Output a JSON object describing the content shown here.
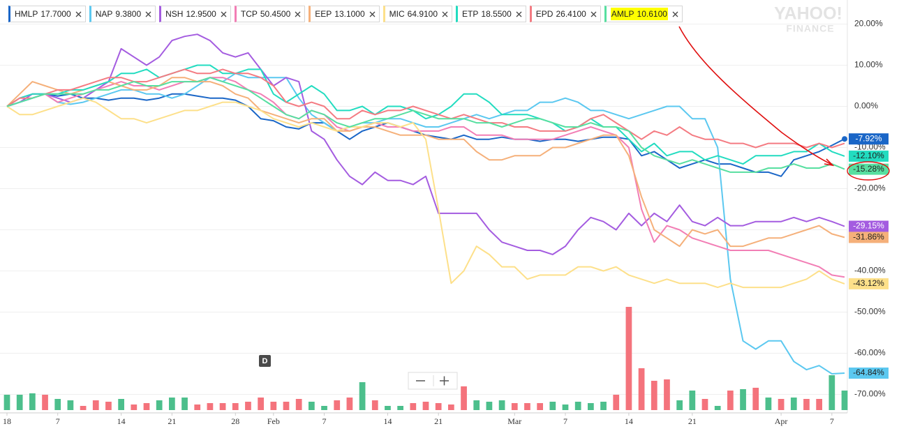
{
  "chart_data": {
    "type": "line",
    "watermark": {
      "brand": "YAHOO!",
      "product": "FINANCE"
    },
    "event_marker": "D",
    "categories": [
      "18",
      null,
      null,
      null,
      "7",
      null,
      null,
      null,
      null,
      "14",
      null,
      null,
      null,
      "21",
      null,
      null,
      null,
      null,
      "28",
      null,
      null,
      "Feb",
      null,
      null,
      null,
      "7",
      null,
      null,
      null,
      null,
      "14",
      null,
      null,
      null,
      "21",
      null,
      null,
      null,
      null,
      null,
      "Mar",
      null,
      null,
      null,
      "7",
      null,
      null,
      null,
      null,
      "14",
      null,
      null,
      null,
      null,
      "21",
      null,
      null,
      null,
      null,
      null,
      null,
      "Apr",
      null,
      null,
      null,
      "7",
      null
    ],
    "ylim": [
      -74.5,
      25
    ],
    "yticks": [
      {
        "value": 20,
        "label": "20.00%"
      },
      {
        "value": 10,
        "label": "10.00%"
      },
      {
        "value": 0,
        "label": "0.00%"
      },
      {
        "value": -10,
        "label": "-10.00%"
      },
      {
        "value": -20,
        "label": "-20.00%"
      },
      {
        "value": -30,
        "label": "-30.00%"
      },
      {
        "value": -40,
        "label": "-40.00%"
      },
      {
        "value": -50,
        "label": "-50.00%"
      },
      {
        "value": -60,
        "label": "-60.00%"
      },
      {
        "value": -70,
        "label": "-70.00%"
      }
    ],
    "grid": true,
    "series": [
      {
        "name": "HMLP",
        "price": "17.7000",
        "color": "#1a66c7",
        "end_label": "-7.92%",
        "end_dot": true,
        "values": [
          0,
          1,
          2,
          3,
          2.5,
          3,
          2,
          2,
          1.5,
          2,
          2,
          1.5,
          2,
          3,
          3,
          2.5,
          2,
          2,
          1.5,
          0,
          -3,
          -3.5,
          -5,
          -5.5,
          -4,
          -4,
          -6,
          -8,
          -6,
          -5,
          -4,
          -5,
          -6,
          -7,
          -7.5,
          -8,
          -7,
          -8,
          -8,
          -7.5,
          -8,
          -8,
          -8.5,
          -8,
          -8,
          -8.5,
          -8,
          -7.5,
          -7.5,
          -8,
          -12,
          -11,
          -13,
          -15,
          -14,
          -13,
          -14,
          -14,
          -15,
          -16,
          -16,
          -17,
          -13,
          -12,
          -11,
          -9.5,
          -7.92
        ]
      },
      {
        "name": "NAP",
        "price": "9.3800",
        "color": "#5bc8f0",
        "end_label": "-64.84%",
        "values": [
          0,
          1,
          2,
          3,
          1,
          0.5,
          1,
          2,
          3,
          4,
          4,
          3,
          3,
          2,
          3,
          5,
          7,
          6,
          8,
          7,
          7,
          7,
          7,
          2,
          -2,
          -4,
          -6,
          -5,
          -4,
          -4,
          -3,
          -3,
          -4,
          -5,
          -5,
          -4,
          -3,
          -2,
          -3,
          -2,
          -1,
          -1,
          1,
          1,
          2,
          1,
          -1,
          -1,
          -2,
          -3,
          -2,
          -1,
          0,
          0,
          -3,
          -3,
          -10,
          -42,
          -57,
          -59,
          -57,
          -57,
          -62,
          -64,
          -63,
          -65,
          -64.84
        ]
      },
      {
        "name": "NSH",
        "price": "12.9500",
        "color": "#a45ce0",
        "end_label": "-29.15%",
        "values": [
          0,
          1,
          3,
          3,
          2,
          1,
          2,
          4,
          6,
          14,
          12,
          10,
          12,
          16,
          17,
          17.5,
          16,
          13,
          12,
          13,
          9,
          5,
          7,
          6,
          -6,
          -8,
          -13,
          -17,
          -19,
          -16,
          -18,
          -18,
          -19,
          -17,
          -26,
          -26,
          -26,
          -26,
          -30,
          -33,
          -34,
          -35,
          -35,
          -36,
          -34,
          -30,
          -27,
          -28,
          -30,
          -26,
          -29,
          -26,
          -28,
          -24,
          -28,
          -29,
          -27,
          -29,
          -29,
          -28,
          -28,
          -28,
          -27,
          -28,
          -27,
          -28,
          -29.15
        ]
      },
      {
        "name": "TCP",
        "price": "50.4500",
        "color": "#f27eb5",
        "values": [
          0,
          2,
          3,
          3,
          1,
          2,
          3,
          4,
          5,
          6,
          5,
          5,
          4,
          5,
          6,
          6,
          7,
          7,
          6,
          4,
          3,
          1,
          -2,
          -3,
          -1,
          -2,
          -5,
          -6,
          -5,
          -4,
          -5,
          -5,
          -6,
          -6,
          -6,
          -5,
          -5,
          -7,
          -7,
          -7,
          -8,
          -8,
          -8,
          -8,
          -7,
          -6,
          -5,
          -6,
          -7,
          -10,
          -25,
          -33,
          -29,
          -30,
          -32,
          -33,
          -34,
          -35,
          -35,
          -35,
          -35,
          -36,
          -37,
          -38,
          -39,
          -41,
          -41.5
        ]
      },
      {
        "name": "EEP",
        "price": "13.1000",
        "color": "#f5b07a",
        "end_label": "-31.86%",
        "values": [
          0,
          3,
          6,
          5,
          4,
          3,
          4,
          5,
          6,
          5,
          4,
          4,
          5,
          7,
          7,
          6,
          6,
          5,
          3,
          2,
          -1,
          -2,
          -3,
          -4,
          -3,
          -3,
          -6,
          -6,
          -5,
          -5,
          -6,
          -7,
          -7,
          -7,
          -8,
          -8,
          -8,
          -11,
          -13,
          -13,
          -12,
          -12,
          -12,
          -10,
          -10,
          -9,
          -8,
          -7,
          -7,
          -12,
          -22,
          -30,
          -32,
          -34,
          -30,
          -31,
          -30,
          -34,
          -34,
          -33,
          -32,
          -32,
          -31,
          -30,
          -29,
          -31,
          -31.86
        ]
      },
      {
        "name": "MIC",
        "price": "64.9100",
        "color": "#fde08a",
        "end_label": "-43.12%",
        "values": [
          0,
          -2,
          -2,
          -1,
          0,
          1,
          2,
          1,
          -1,
          -3,
          -3,
          -4,
          -3,
          -2,
          -1,
          -1,
          0,
          1,
          1,
          0,
          -1,
          -3,
          -4,
          -5,
          -4,
          -5,
          -6,
          -5,
          -5,
          -4,
          -4,
          -5,
          -4,
          -8,
          -25,
          -43,
          -40,
          -34,
          -36,
          -39,
          -39,
          -42,
          -41,
          -41,
          -41,
          -39,
          -39,
          -40,
          -39,
          -41,
          -42,
          -43,
          -42,
          -43,
          -43,
          -43,
          -44,
          -43,
          -44,
          -44,
          -44,
          -44,
          -43,
          -42,
          -40,
          -42,
          -43.12
        ]
      },
      {
        "name": "ETP",
        "price": "18.5500",
        "color": "#22dcc0",
        "end_label": "-12.10%",
        "values": [
          0,
          2,
          3,
          3,
          3,
          4,
          4,
          5,
          6,
          8,
          8,
          9,
          7,
          8,
          9,
          10,
          10,
          8,
          8,
          9,
          9,
          3,
          1,
          3,
          5,
          3,
          -1,
          -1,
          0,
          -2,
          0,
          0,
          -1,
          -3,
          -2,
          0,
          3,
          3,
          1,
          -2,
          -2,
          -2,
          -3,
          -4,
          -6,
          -5,
          -3,
          -5,
          -5,
          -8,
          -11,
          -9,
          -12,
          -11,
          -11,
          -13,
          -12,
          -13,
          -14,
          -12,
          -12,
          -12,
          -11,
          -11,
          -9,
          -11,
          -12.1
        ]
      },
      {
        "name": "EPD",
        "price": "26.4100",
        "color": "#f47b82",
        "values": [
          0,
          2,
          2,
          3,
          4,
          4,
          5,
          6,
          7,
          7,
          6,
          6,
          7,
          8,
          9,
          8,
          8,
          9,
          8,
          8,
          7,
          5,
          1,
          0,
          1,
          0,
          -3,
          -3,
          -1,
          -2,
          -1,
          -1,
          0,
          -1,
          -2,
          -3,
          -2,
          -3,
          -4,
          -4,
          -5,
          -5,
          -6,
          -6,
          -6,
          -5,
          -3,
          -2,
          -4,
          -6,
          -8,
          -6,
          -7,
          -5,
          -7,
          -8,
          -8,
          -9,
          -9,
          -10,
          -9,
          -9,
          -9,
          -10,
          -9,
          -10,
          -9
        ]
      },
      {
        "name": "AMLP",
        "price": "10.6100",
        "color": "#57dfa0",
        "end_label": "-15.28%",
        "highlighted": true,
        "values": [
          0,
          1,
          2,
          3,
          3,
          3,
          3,
          4,
          4,
          5,
          6,
          5,
          5,
          6,
          6,
          6,
          7,
          6,
          5,
          4,
          2,
          0,
          -2,
          -3,
          -1,
          -2,
          -4,
          -5,
          -4,
          -3,
          -3,
          -2,
          -1,
          -2,
          -3,
          -3,
          -3,
          -4,
          -4,
          -5,
          -4,
          -3,
          -3,
          -4,
          -5,
          -5,
          -4,
          -5,
          -5,
          -6,
          -10,
          -12,
          -13,
          -14,
          -13,
          -14,
          -15,
          -16,
          -16,
          -16,
          -15,
          -15,
          -14,
          -15,
          -15,
          -14,
          -15.28
        ]
      }
    ],
    "volume": {
      "up_color": "#4cbf8c",
      "down_color": "#f4737c",
      "direction": [
        "up",
        "up",
        "up",
        "down",
        "up",
        "up",
        "down",
        "down",
        "down",
        "up",
        "down",
        "down",
        "up",
        "up",
        "up",
        "down",
        "down",
        "down",
        "down",
        "down",
        "down",
        "down",
        "down",
        "down",
        "up",
        "up",
        "down",
        "down",
        "up",
        "down",
        "up",
        "up",
        "down",
        "down",
        "down",
        "down",
        "down",
        "up",
        "up",
        "up",
        "down",
        "down",
        "down",
        "up",
        "up",
        "up",
        "up",
        "up",
        "down",
        "down",
        "down",
        "down",
        "down",
        "up",
        "up",
        "down",
        "up",
        "down",
        "up",
        "down",
        "up",
        "down",
        "up",
        "down",
        "down",
        "up",
        "up"
      ],
      "values": [
        22,
        22,
        24,
        22,
        16,
        14,
        6,
        14,
        12,
        16,
        8,
        10,
        14,
        18,
        18,
        8,
        10,
        10,
        10,
        12,
        18,
        12,
        12,
        16,
        12,
        6,
        14,
        18,
        40,
        14,
        6,
        6,
        10,
        12,
        10,
        8,
        34,
        14,
        12,
        14,
        10,
        10,
        10,
        12,
        8,
        12,
        10,
        12,
        22,
        148,
        60,
        42,
        44,
        14,
        28,
        16,
        6,
        28,
        30,
        32,
        18,
        16,
        18,
        16,
        16,
        50,
        28
      ]
    }
  }
}
